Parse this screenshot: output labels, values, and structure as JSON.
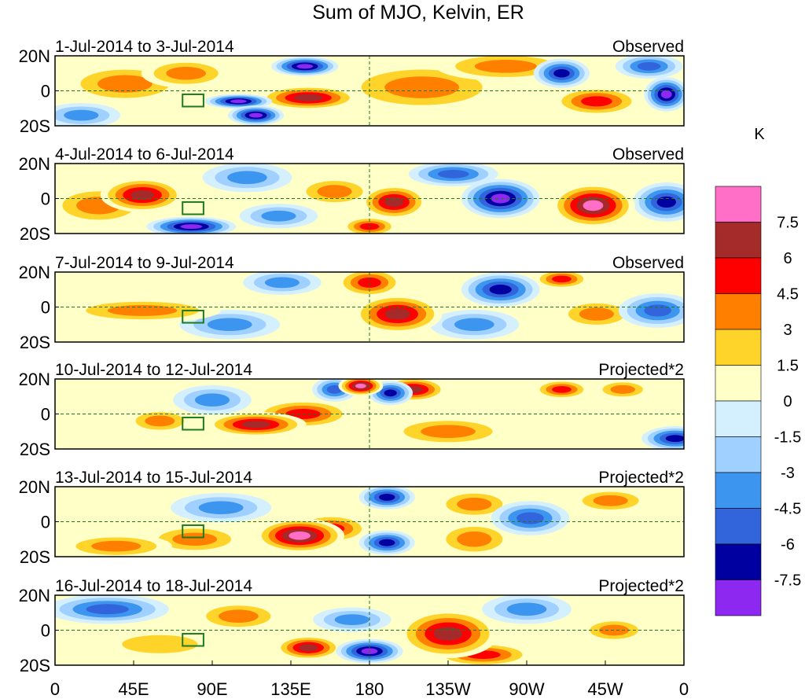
{
  "chart_data": {
    "type": "heatmap",
    "title": "Sum of MJO, Kelvin, ER",
    "units": "K",
    "colorbar": {
      "labels": [
        "7.5",
        "6",
        "4.5",
        "3",
        "1.5",
        "0",
        "-1.5",
        "-3",
        "-4.5",
        "-6",
        "-7.5"
      ],
      "levels": [
        7.5,
        6,
        4.5,
        3,
        1.5,
        0,
        -1.5,
        -3,
        -4.5,
        -6,
        -7.5
      ],
      "colors": [
        "#ff6ec7",
        "#a52a2a",
        "#ff0000",
        "#ff7f00",
        "#ffd42a",
        "#ffffc8",
        "#d4f0ff",
        "#a0d0ff",
        "#3c96f0",
        "#3264dc",
        "#0000a0",
        "#8c28f0"
      ]
    },
    "x_ticks": [
      "0",
      "45E",
      "90E",
      "135E",
      "180",
      "135W",
      "90W",
      "45W",
      "0"
    ],
    "y_ticks": [
      "20N",
      "0",
      "20S"
    ],
    "ylim": [
      -20,
      20
    ],
    "xlim": [
      0,
      360
    ],
    "panels": [
      {
        "dates": "1-Jul-2014 to 3-Jul-2014",
        "mode": "Observed",
        "features": [
          {
            "lon": 105,
            "lat": -6,
            "value": -8.0,
            "rlon": 12,
            "rlat": 3
          },
          {
            "lon": 115,
            "lat": -14,
            "value": -8.5,
            "rlon": 10,
            "rlat": 4
          },
          {
            "lon": 143,
            "lat": 14,
            "value": -7.5,
            "rlon": 12,
            "rlat": 4
          },
          {
            "lon": 145,
            "lat": -4,
            "value": 6.5,
            "rlon": 18,
            "rlat": 5
          },
          {
            "lon": 40,
            "lat": 4,
            "value": 3.5,
            "rlon": 22,
            "rlat": 8
          },
          {
            "lon": 75,
            "lat": 10,
            "value": 4.0,
            "rlon": 16,
            "rlat": 6
          },
          {
            "lon": 258,
            "lat": 14,
            "value": 4.0,
            "rlon": 25,
            "rlat": 6
          },
          {
            "lon": 210,
            "lat": 2,
            "value": 3.5,
            "rlon": 30,
            "rlat": 10
          },
          {
            "lon": 290,
            "lat": 10,
            "value": -6.0,
            "rlon": 10,
            "rlat": 6
          },
          {
            "lon": 350,
            "lat": -2,
            "value": -8.0,
            "rlon": 8,
            "rlat": 7
          },
          {
            "lon": 310,
            "lat": -6,
            "value": 4.5,
            "rlon": 16,
            "rlat": 6
          },
          {
            "lon": 340,
            "lat": 14,
            "value": -5.0,
            "rlon": 12,
            "rlat": 5
          },
          {
            "lon": 15,
            "lat": -14,
            "value": -3.5,
            "rlon": 14,
            "rlat": 5
          }
        ]
      },
      {
        "dates": "4-Jul-2014 to 6-Jul-2014",
        "mode": "Observed",
        "features": [
          {
            "lon": 50,
            "lat": 2,
            "value": 6.5,
            "rlon": 15,
            "rlat": 7
          },
          {
            "lon": 25,
            "lat": -4,
            "value": 4.0,
            "rlon": 18,
            "rlat": 8
          },
          {
            "lon": 78,
            "lat": -16,
            "value": -8.5,
            "rlon": 16,
            "rlat": 4
          },
          {
            "lon": 110,
            "lat": 12,
            "value": -4.0,
            "rlon": 16,
            "rlat": 6
          },
          {
            "lon": 160,
            "lat": 4,
            "value": 3.5,
            "rlon": 14,
            "rlat": 6
          },
          {
            "lon": 194,
            "lat": -2,
            "value": 6.5,
            "rlon": 12,
            "rlat": 7
          },
          {
            "lon": 180,
            "lat": -16,
            "value": 5.5,
            "rlon": 10,
            "rlat": 4
          },
          {
            "lon": 255,
            "lat": 0,
            "value": -7.5,
            "rlon": 14,
            "rlat": 8
          },
          {
            "lon": 308,
            "lat": -4,
            "value": 8.0,
            "rlon": 15,
            "rlat": 9
          },
          {
            "lon": 350,
            "lat": -2,
            "value": -7.0,
            "rlon": 12,
            "rlat": 8
          },
          {
            "lon": 228,
            "lat": 14,
            "value": -4.5,
            "rlon": 16,
            "rlat": 5
          },
          {
            "lon": 128,
            "lat": -10,
            "value": -3.5,
            "rlon": 14,
            "rlat": 5
          }
        ]
      },
      {
        "dates": "7-Jul-2014 to 9-Jul-2014",
        "mode": "Observed",
        "features": [
          {
            "lon": 196,
            "lat": -4,
            "value": 6.5,
            "rlon": 16,
            "rlat": 8
          },
          {
            "lon": 180,
            "lat": 14,
            "value": 4.5,
            "rlon": 12,
            "rlat": 6
          },
          {
            "lon": 255,
            "lat": 10,
            "value": -6.0,
            "rlon": 14,
            "rlat": 7
          },
          {
            "lon": 290,
            "lat": 16,
            "value": 4.5,
            "rlon": 10,
            "rlat": 4
          },
          {
            "lon": 310,
            "lat": -4,
            "value": 4.0,
            "rlon": 14,
            "rlat": 6
          },
          {
            "lon": 345,
            "lat": -2,
            "value": -5.5,
            "rlon": 14,
            "rlat": 7
          },
          {
            "lon": 130,
            "lat": 14,
            "value": -4.0,
            "rlon": 14,
            "rlat": 5
          },
          {
            "lon": 50,
            "lat": -2,
            "value": 3.5,
            "rlon": 28,
            "rlat": 5
          },
          {
            "lon": 240,
            "lat": -10,
            "value": -4.0,
            "rlon": 16,
            "rlat": 6
          },
          {
            "lon": 100,
            "lat": -10,
            "value": -3.0,
            "rlon": 18,
            "rlat": 6
          }
        ]
      },
      {
        "dates": "10-Jul-2014 to 12-Jul-2014",
        "mode": "Projected*2",
        "features": [
          {
            "lon": 115,
            "lat": -6,
            "value": 6.5,
            "rlon": 18,
            "rlat": 5
          },
          {
            "lon": 142,
            "lat": 0,
            "value": 5.0,
            "rlon": 18,
            "rlat": 6
          },
          {
            "lon": 175,
            "lat": 16,
            "value": 8.0,
            "rlon": 8,
            "rlat": 4
          },
          {
            "lon": 205,
            "lat": 14,
            "value": 6.0,
            "rlon": 12,
            "rlat": 5
          },
          {
            "lon": 192,
            "lat": 12,
            "value": -6.5,
            "rlon": 8,
            "rlat": 5
          },
          {
            "lon": 160,
            "lat": 14,
            "value": -5.5,
            "rlon": 8,
            "rlat": 5
          },
          {
            "lon": 290,
            "lat": 14,
            "value": 5.0,
            "rlon": 10,
            "rlat": 4
          },
          {
            "lon": 325,
            "lat": 14,
            "value": 4.0,
            "rlon": 10,
            "rlat": 4
          },
          {
            "lon": 355,
            "lat": -14,
            "value": -6.5,
            "rlon": 12,
            "rlat": 5
          },
          {
            "lon": 225,
            "lat": -10,
            "value": 4.0,
            "rlon": 22,
            "rlat": 6
          },
          {
            "lon": 90,
            "lat": 8,
            "value": -4.0,
            "rlon": 14,
            "rlat": 6
          },
          {
            "lon": 60,
            "lat": -4,
            "value": 4.0,
            "rlon": 12,
            "rlat": 5
          }
        ]
      },
      {
        "dates": "13-Jul-2014 to 15-Jul-2014",
        "mode": "Projected*2",
        "features": [
          {
            "lon": 140,
            "lat": -8,
            "value": 8.0,
            "rlon": 16,
            "rlat": 7
          },
          {
            "lon": 158,
            "lat": -4,
            "value": 5.0,
            "rlon": 14,
            "rlat": 6
          },
          {
            "lon": 190,
            "lat": 14,
            "value": -7.0,
            "rlon": 10,
            "rlat": 5
          },
          {
            "lon": 190,
            "lat": -12,
            "value": -6.5,
            "rlon": 10,
            "rlat": 5
          },
          {
            "lon": 240,
            "lat": 10,
            "value": 3.5,
            "rlon": 14,
            "rlat": 6
          },
          {
            "lon": 240,
            "lat": -10,
            "value": 4.0,
            "rlon": 14,
            "rlat": 7
          },
          {
            "lon": 318,
            "lat": 12,
            "value": 3.5,
            "rlon": 14,
            "rlat": 5
          },
          {
            "lon": 272,
            "lat": 2,
            "value": -5.0,
            "rlon": 14,
            "rlat": 7
          },
          {
            "lon": 35,
            "lat": -14,
            "value": 3.5,
            "rlon": 20,
            "rlat": 5
          },
          {
            "lon": 95,
            "lat": 8,
            "value": -3.5,
            "rlon": 18,
            "rlat": 6
          },
          {
            "lon": 80,
            "lat": -10,
            "value": 3.0,
            "rlon": 18,
            "rlat": 6
          }
        ]
      },
      {
        "dates": "16-Jul-2014 to 18-Jul-2014",
        "mode": "Projected*2",
        "features": [
          {
            "lon": 145,
            "lat": -10,
            "value": 6.5,
            "rlon": 12,
            "rlat": 5
          },
          {
            "lon": 225,
            "lat": -2,
            "value": 6.5,
            "rlon": 18,
            "rlat": 10
          },
          {
            "lon": 245,
            "lat": -14,
            "value": 5.0,
            "rlon": 18,
            "rlat": 5
          },
          {
            "lon": 180,
            "lat": -12,
            "value": -7.5,
            "rlon": 12,
            "rlat": 5
          },
          {
            "lon": 30,
            "lat": 12,
            "value": -4.5,
            "rlon": 22,
            "rlat": 6
          },
          {
            "lon": 170,
            "lat": 6,
            "value": -3.5,
            "rlon": 14,
            "rlat": 5
          },
          {
            "lon": 320,
            "lat": 0,
            "value": 3.5,
            "rlon": 12,
            "rlat": 5
          },
          {
            "lon": 270,
            "lat": 12,
            "value": -3.5,
            "rlon": 16,
            "rlat": 6
          },
          {
            "lon": 105,
            "lat": 8,
            "value": 3.0,
            "rlon": 16,
            "rlat": 6
          },
          {
            "lon": 60,
            "lat": -8,
            "value": 2.5,
            "rlon": 22,
            "rlat": 6
          }
        ]
      }
    ]
  }
}
